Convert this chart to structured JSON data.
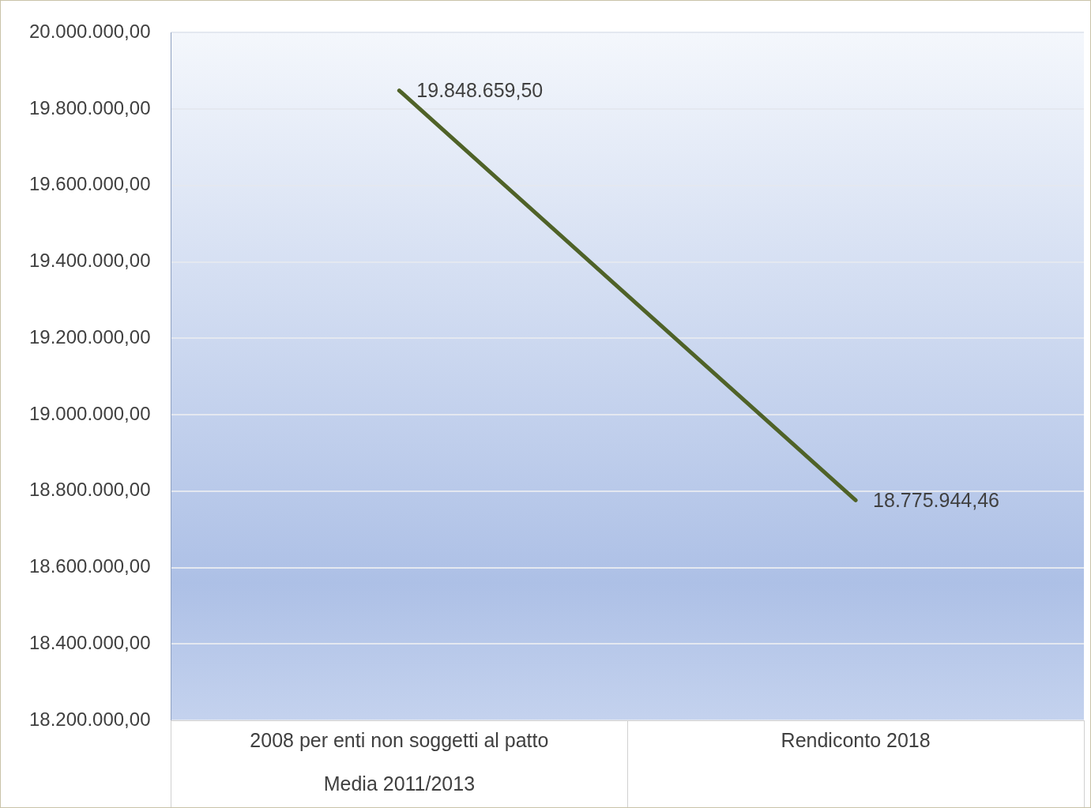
{
  "chart_data": {
    "type": "line",
    "categories": [
      "2008 per enti non soggetti al patto\nMedia 2011/2013",
      "Rendiconto 2018"
    ],
    "series": [
      {
        "color": "#4f6228",
        "values": [
          19848659.5,
          18775944.46
        ],
        "value_labels": [
          "19.848.659,50",
          "18.775.944,46"
        ]
      }
    ],
    "ylim": [
      18200000,
      20000000
    ],
    "yticks": [
      {
        "value": 18200000,
        "label": "18.200.000,00"
      },
      {
        "value": 18400000,
        "label": "18.400.000,00"
      },
      {
        "value": 18600000,
        "label": "18.600.000,00"
      },
      {
        "value": 18800000,
        "label": "18.800.000,00"
      },
      {
        "value": 19000000,
        "label": "19.000.000,00"
      },
      {
        "value": 19200000,
        "label": "19.200.000,00"
      },
      {
        "value": 19400000,
        "label": "19.400.000,00"
      },
      {
        "value": 19600000,
        "label": "19.600.000,00"
      },
      {
        "value": 19800000,
        "label": "19.800.000,00"
      },
      {
        "value": 20000000,
        "label": "20.000.000,00"
      }
    ],
    "grid": "y",
    "legend": false,
    "marker": "none",
    "line_style": "solid"
  }
}
